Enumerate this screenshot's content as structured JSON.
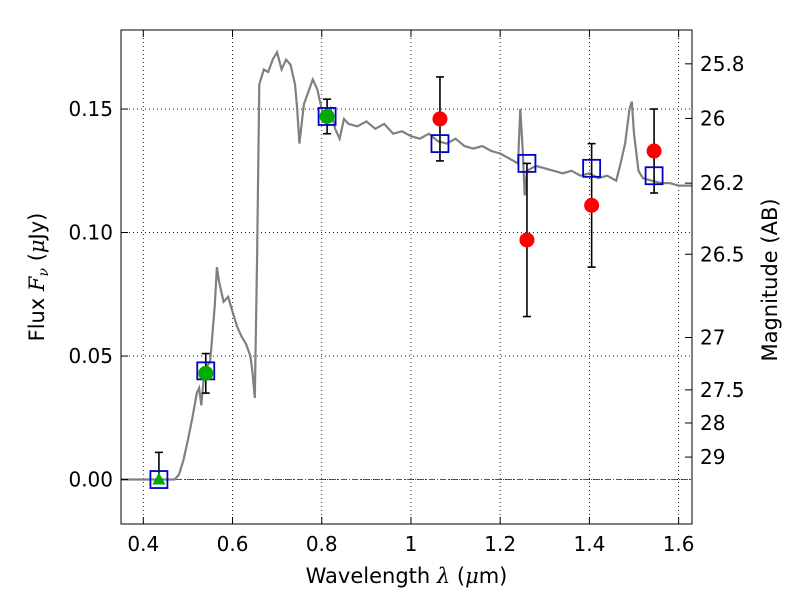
{
  "chart_data": {
    "type": "line",
    "title": "",
    "xlabel": "Wavelength λ (μm)",
    "ylabel": "Flux Fν (μJy)",
    "ylabel_right": "Magnitude (AB)",
    "xlim": [
      0.35,
      1.63
    ],
    "ylim": [
      -0.018,
      0.182
    ],
    "grid": true,
    "x_ticks": [
      {
        "value": 0.4,
        "label": "0.4"
      },
      {
        "value": 0.6,
        "label": "0.6"
      },
      {
        "value": 0.8,
        "label": "0.8"
      },
      {
        "value": 1.0,
        "label": "1"
      },
      {
        "value": 1.2,
        "label": "1.2"
      },
      {
        "value": 1.4,
        "label": "1.4"
      },
      {
        "value": 1.6,
        "label": "1.6"
      }
    ],
    "y_ticks": [
      {
        "value": 0.0,
        "label": "0.00"
      },
      {
        "value": 0.05,
        "label": "0.05"
      },
      {
        "value": 0.1,
        "label": "0.10"
      },
      {
        "value": 0.15,
        "label": "0.15"
      }
    ],
    "mag_ticks": [
      {
        "flux": 0.1683,
        "label": "25.8"
      },
      {
        "flux": 0.1462,
        "label": "26"
      },
      {
        "flux": 0.12,
        "label": "26.2"
      },
      {
        "flux": 0.0912,
        "label": "26.5"
      },
      {
        "flux": 0.0575,
        "label": "27"
      },
      {
        "flux": 0.0363,
        "label": "27.5"
      },
      {
        "flux": 0.0229,
        "label": "28"
      },
      {
        "flux": 0.0091,
        "label": "29"
      }
    ],
    "model_sed": {
      "color": "#808080",
      "x": [
        0.35,
        0.47,
        0.48,
        0.49,
        0.5,
        0.51,
        0.52,
        0.525,
        0.53,
        0.535,
        0.54,
        0.55,
        0.56,
        0.565,
        0.57,
        0.58,
        0.59,
        0.6,
        0.61,
        0.62,
        0.63,
        0.64,
        0.645,
        0.65,
        0.655,
        0.66,
        0.67,
        0.68,
        0.69,
        0.7,
        0.71,
        0.72,
        0.73,
        0.74,
        0.745,
        0.75,
        0.76,
        0.77,
        0.78,
        0.79,
        0.8,
        0.81,
        0.82,
        0.83,
        0.84,
        0.85,
        0.86,
        0.88,
        0.9,
        0.92,
        0.94,
        0.96,
        0.98,
        1.0,
        1.02,
        1.04,
        1.06,
        1.08,
        1.1,
        1.12,
        1.14,
        1.16,
        1.18,
        1.2,
        1.22,
        1.24,
        1.245,
        1.25,
        1.255,
        1.26,
        1.28,
        1.3,
        1.32,
        1.34,
        1.36,
        1.38,
        1.4,
        1.42,
        1.44,
        1.46,
        1.47,
        1.48,
        1.49,
        1.495,
        1.5,
        1.51,
        1.52,
        1.54,
        1.56,
        1.58,
        1.6,
        1.63
      ],
      "y": [
        0.0,
        0.0,
        0.002,
        0.008,
        0.016,
        0.025,
        0.035,
        0.037,
        0.03,
        0.04,
        0.045,
        0.048,
        0.07,
        0.086,
        0.08,
        0.072,
        0.074,
        0.068,
        0.062,
        0.058,
        0.055,
        0.05,
        0.043,
        0.033,
        0.09,
        0.16,
        0.166,
        0.165,
        0.17,
        0.173,
        0.166,
        0.17,
        0.168,
        0.16,
        0.15,
        0.136,
        0.152,
        0.157,
        0.162,
        0.158,
        0.15,
        0.145,
        0.15,
        0.142,
        0.138,
        0.146,
        0.144,
        0.143,
        0.145,
        0.142,
        0.144,
        0.14,
        0.141,
        0.139,
        0.138,
        0.14,
        0.137,
        0.136,
        0.138,
        0.135,
        0.134,
        0.135,
        0.133,
        0.132,
        0.13,
        0.128,
        0.15,
        0.135,
        0.115,
        0.125,
        0.127,
        0.126,
        0.125,
        0.124,
        0.125,
        0.123,
        0.124,
        0.122,
        0.123,
        0.121,
        0.128,
        0.136,
        0.15,
        0.153,
        0.14,
        0.125,
        0.122,
        0.121,
        0.12,
        0.12,
        0.119,
        0.119
      ]
    },
    "model_points": {
      "color": "#0000cc",
      "marker": "open-square",
      "x": [
        0.435,
        0.54,
        0.812,
        1.065,
        1.26,
        1.405,
        1.545
      ],
      "y": [
        0.0,
        0.044,
        0.147,
        0.136,
        0.128,
        0.126,
        0.123
      ]
    },
    "observed_optical": {
      "color": "#00aa00",
      "marker": "filled-circle",
      "x": [
        0.54,
        0.812
      ],
      "y": [
        0.043,
        0.147
      ],
      "yerr": [
        0.008,
        0.007
      ]
    },
    "observed_optical_limit": {
      "color": "#00aa00",
      "marker": "filled-triangle",
      "x": [
        0.435
      ],
      "y": [
        0.0
      ],
      "yerr_up": [
        0.011
      ]
    },
    "observed_nir": {
      "color": "#ff0000",
      "marker": "filled-circle",
      "x": [
        1.065,
        1.26,
        1.405,
        1.545
      ],
      "y": [
        0.146,
        0.097,
        0.111,
        0.133
      ],
      "yerr": [
        0.017,
        0.031,
        0.025,
        0.017
      ]
    }
  }
}
